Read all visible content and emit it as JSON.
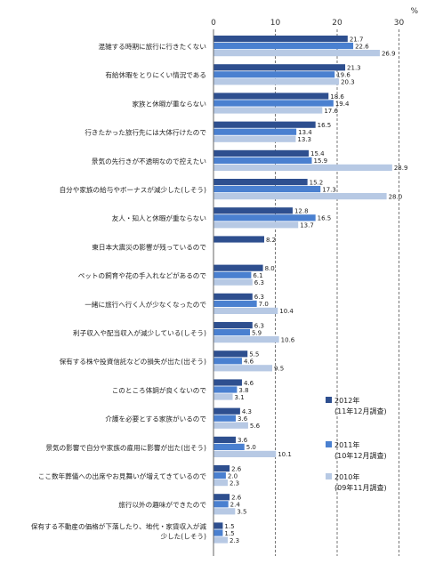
{
  "chart_data": {
    "type": "bar",
    "orientation": "horizontal",
    "unit": "%",
    "xlim": [
      0,
      32
    ],
    "xticks": [
      0,
      10,
      20,
      30
    ],
    "xtick_labels": [
      "0",
      "10",
      "20",
      "30"
    ],
    "grid": true,
    "legend_position": "right",
    "categories": [
      "混雑する時期に旅行に行きたくない",
      "有給休暇をとりにくい情況である",
      "家族と休暇が重ならない",
      "行きたかった旅行先には大体行けたので",
      "景気の先行きが不透明なので控えたい",
      "自分や家族の給与やボーナスが減少した(しそう)",
      "友人・知人と休暇が重ならない",
      "東日本大震災の影響が残っているので",
      "ペットの飼育や花の手入れなどがあるので",
      "一緒に旅行へ行く人が少なくなったので",
      "利子収入や配当収入が減少している(しそう)",
      "保有する株や投資信託などの損失が出た(出そう)",
      "このところ体調が良くないので",
      "介護を必要とする家族がいるので",
      "景気の影響で自分や家族の雇用に影響が出た(出そう)",
      "ここ数年葬儀への出席やお見舞いが増えてきているので",
      "旅行以外の趣味ができたので",
      "保有する不動産の価格が下落したり、地代・家賃収入が減少した(しそう)"
    ],
    "series": [
      {
        "name": "2012年",
        "name_sub": "(11年12月調査)",
        "color": "#2e4f8f",
        "values": [
          21.7,
          21.3,
          18.6,
          16.5,
          15.4,
          15.2,
          12.8,
          8.2,
          8.0,
          6.3,
          6.3,
          5.5,
          4.6,
          4.3,
          3.6,
          2.6,
          2.6,
          1.5
        ],
        "labels": [
          "21.7",
          "21.3",
          "18.6",
          "16.5",
          "15.4",
          "15.2",
          "12.8",
          "8.2",
          "8.0",
          "6.3",
          "6.3",
          "5.5",
          "4.6",
          "4.3",
          "3.6",
          "2.6",
          "2.6",
          "1.5"
        ]
      },
      {
        "name": "2011年",
        "name_sub": "(10年12月調査)",
        "color": "#4a80d0",
        "values": [
          22.6,
          19.6,
          19.4,
          13.4,
          15.9,
          17.3,
          16.5,
          null,
          6.1,
          7.0,
          5.9,
          4.6,
          3.8,
          3.6,
          5.0,
          2.0,
          2.4,
          1.5
        ],
        "labels": [
          "22.6",
          "19.6",
          "19.4",
          "13.4",
          "15.9",
          "17.3",
          "16.5",
          "",
          "6.1",
          "7.0",
          "5.9",
          "4.6",
          "3.8",
          "3.6",
          "5.0",
          "2.0",
          "2.4",
          "1.5"
        ]
      },
      {
        "name": "2010年",
        "name_sub": "(09年11月調査)",
        "color": "#b7c9e4",
        "values": [
          26.9,
          20.3,
          17.6,
          13.3,
          28.9,
          28.0,
          13.7,
          null,
          6.3,
          10.4,
          10.6,
          9.5,
          3.1,
          5.6,
          10.1,
          2.3,
          3.5,
          2.3
        ],
        "labels": [
          "26.9",
          "20.3",
          "17.6",
          "13.3",
          "28.9",
          "28.0",
          "13.7",
          "",
          "6.3",
          "10.4",
          "10.6",
          "9.5",
          "3.1",
          "5.6",
          "10.1",
          "2.3",
          "3.5",
          "2.3"
        ]
      }
    ]
  }
}
